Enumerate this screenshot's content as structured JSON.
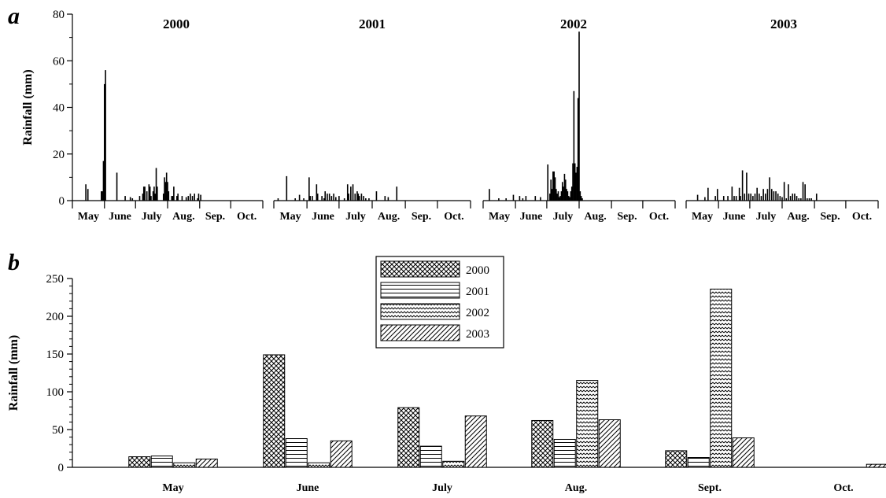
{
  "panel_a_label": "a",
  "panel_b_label": "b",
  "chart_data": [
    {
      "type": "bar",
      "panel": "a",
      "ylabel": "Rainfall (mm)",
      "ylim": [
        0,
        80
      ],
      "yticks": [
        0,
        20,
        40,
        60,
        80
      ],
      "subplots": [
        {
          "title": "2000",
          "months": [
            "May",
            "June",
            "July",
            "Aug.",
            "Sep.",
            "Oct."
          ],
          "x_unit": "day of season (day 0 = 1 May)",
          "x": [
            13,
            15,
            28,
            29,
            30,
            31,
            32,
            43,
            51,
            56,
            58,
            65,
            68,
            69,
            70,
            72,
            74,
            75,
            76,
            78,
            79,
            80,
            81,
            82,
            88,
            89,
            90,
            91,
            92,
            93,
            96,
            97,
            98,
            101,
            102,
            106,
            110,
            112,
            114,
            116,
            118,
            121,
            122,
            124
          ],
          "values": [
            7,
            5,
            4,
            4,
            17,
            50,
            56,
            12,
            2,
            1.5,
            1,
            2,
            3,
            6,
            6,
            4,
            7,
            6,
            2,
            4,
            6,
            3,
            14,
            6,
            3,
            10,
            8,
            12,
            8,
            4,
            2,
            2,
            6,
            2,
            3,
            2,
            1.5,
            2,
            3,
            2,
            3,
            1,
            3,
            2.5
          ]
        },
        {
          "title": "2001",
          "months": [
            "May",
            "June",
            "July",
            "Aug.",
            "Sep.",
            "Oct."
          ],
          "x_unit": "day of season (day 0 = 1 May)",
          "x": [
            4,
            12,
            20,
            24,
            28,
            33,
            34,
            36,
            40,
            41,
            45,
            47,
            48,
            50,
            52,
            54,
            56,
            58,
            61,
            66,
            69,
            70,
            72,
            74,
            76,
            78,
            79,
            80,
            82,
            84,
            86,
            89,
            96,
            104,
            107,
            115
          ],
          "values": [
            1,
            10.5,
            1,
            2.5,
            1,
            10,
            2,
            2,
            7,
            3,
            2,
            1,
            4,
            3,
            3,
            2,
            3,
            1.5,
            2,
            1,
            7,
            3,
            6,
            7,
            3,
            4,
            3,
            2,
            3,
            2,
            1,
            1,
            4,
            2,
            1.5,
            6
          ]
        },
        {
          "title": "2002",
          "months": [
            "May",
            "June",
            "July",
            "Aug.",
            "Sep.",
            "Oct."
          ],
          "x_unit": "day of season (day 0 = 1 May)",
          "x": [
            6,
            15,
            22,
            29,
            35,
            38,
            41,
            50,
            55,
            62,
            64,
            65,
            66,
            67,
            68,
            69,
            70,
            71,
            72,
            73,
            74,
            75,
            76,
            77,
            78,
            79,
            80,
            81,
            82,
            83,
            84,
            85,
            86,
            87,
            88,
            89,
            90,
            91,
            92,
            93,
            94,
            95
          ],
          "values": [
            5,
            1,
            1,
            2.5,
            2,
            1,
            2,
            2,
            1.5,
            15.5,
            3,
            9,
            5,
            12.5,
            12.5,
            10,
            5,
            3,
            4,
            1.5,
            2,
            4,
            8,
            6,
            11.5,
            9,
            5,
            4,
            2,
            1.5,
            4,
            6,
            16,
            47,
            16,
            12,
            14.5,
            44,
            72.5,
            4,
            2,
            1
          ]
        },
        {
          "title": "2003",
          "months": [
            "May",
            "June",
            "July",
            "Aug.",
            "Sep.",
            "Oct."
          ],
          "x_unit": "day of season (day 0 = 1 May)",
          "x": [
            11,
            18,
            21,
            28,
            30,
            36,
            40,
            44,
            46,
            48,
            51,
            52,
            54,
            56,
            58,
            60,
            62,
            64,
            66,
            68,
            70,
            72,
            74,
            76,
            78,
            80,
            82,
            84,
            86,
            88,
            90,
            92,
            94,
            96,
            98,
            100,
            102,
            104,
            106,
            108,
            110,
            112,
            114,
            116,
            118,
            120,
            125
          ],
          "values": [
            2.5,
            1.5,
            5.5,
            2,
            5,
            2,
            2,
            6,
            2,
            2,
            5.5,
            2,
            13,
            3,
            12,
            3,
            3,
            2,
            3,
            5.5,
            3,
            2,
            5,
            3,
            5,
            10,
            5,
            4,
            4,
            3,
            2,
            1.5,
            8,
            1,
            7,
            2,
            3,
            3,
            2,
            1,
            1,
            8,
            7,
            1,
            1,
            1,
            3
          ]
        }
      ]
    },
    {
      "type": "bar",
      "panel": "b",
      "ylabel": "Rainfall (mm)",
      "ylim": [
        0,
        250
      ],
      "yticks": [
        0,
        50,
        100,
        150,
        200,
        250
      ],
      "categories": [
        "May",
        "June",
        "July",
        "Aug.",
        "Sept.",
        "Oct."
      ],
      "legend_position": "top-center",
      "series": [
        {
          "name": "2000",
          "pattern": "crosshatch",
          "values": [
            14,
            149,
            79,
            62,
            22,
            0
          ]
        },
        {
          "name": "2001",
          "pattern": "horizontal",
          "values": [
            15,
            38,
            28,
            37,
            13,
            0
          ]
        },
        {
          "name": "2002",
          "pattern": "wave",
          "values": [
            6,
            6,
            8,
            115,
            236,
            0
          ]
        },
        {
          "name": "2003",
          "pattern": "diagonal",
          "values": [
            11,
            35,
            68,
            63,
            39,
            4
          ]
        }
      ]
    }
  ]
}
